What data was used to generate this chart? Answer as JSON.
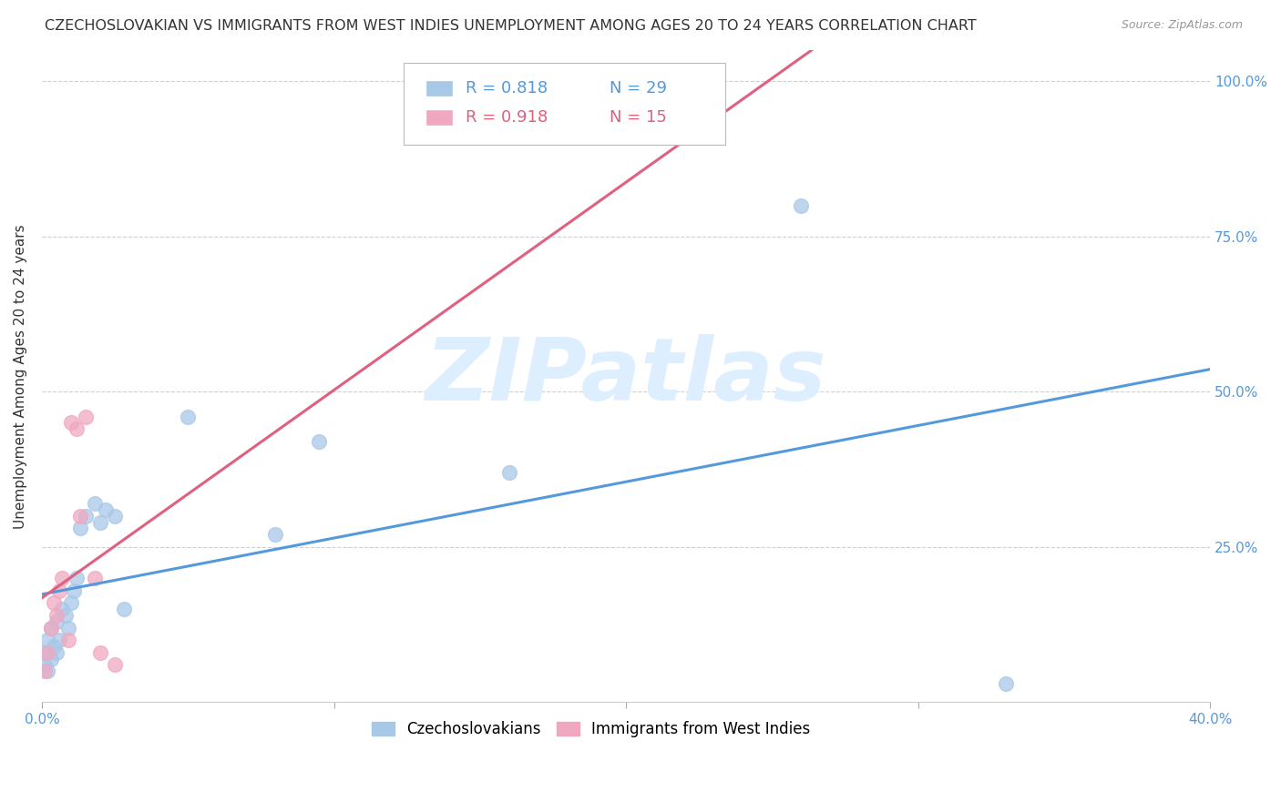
{
  "title": "CZECHOSLOVAKIAN VS IMMIGRANTS FROM WEST INDIES UNEMPLOYMENT AMONG AGES 20 TO 24 YEARS CORRELATION CHART",
  "source": "Source: ZipAtlas.com",
  "ylabel": "Unemployment Among Ages 20 to 24 years",
  "background_color": "#ffffff",
  "grid_color": "#d0d0d0",
  "czech_color": "#a8c8e8",
  "czech_line_color": "#5599dd",
  "czech_R": 0.818,
  "czech_N": 29,
  "wi_color": "#f0a8c0",
  "wi_line_color": "#e06080",
  "wi_R": 0.918,
  "wi_N": 15,
  "xlim": [
    0.0,
    0.4
  ],
  "ylim": [
    0.0,
    1.05
  ],
  "xticks": [
    0.0,
    0.1,
    0.2,
    0.3,
    0.4
  ],
  "xtick_labels": [
    "0.0%",
    "",
    "",
    "",
    "40.0%"
  ],
  "yticks": [
    0.25,
    0.5,
    0.75,
    1.0
  ],
  "ytick_labels": [
    "25.0%",
    "50.0%",
    "75.0%",
    "100.0%"
  ],
  "czech_x": [
    0.001,
    0.001,
    0.002,
    0.002,
    0.003,
    0.003,
    0.004,
    0.005,
    0.005,
    0.006,
    0.007,
    0.008,
    0.009,
    0.01,
    0.011,
    0.012,
    0.013,
    0.015,
    0.018,
    0.02,
    0.022,
    0.025,
    0.028,
    0.05,
    0.08,
    0.095,
    0.16,
    0.26,
    0.33
  ],
  "czech_y": [
    0.06,
    0.08,
    0.05,
    0.1,
    0.07,
    0.12,
    0.09,
    0.08,
    0.13,
    0.1,
    0.15,
    0.14,
    0.12,
    0.16,
    0.18,
    0.2,
    0.28,
    0.3,
    0.32,
    0.29,
    0.31,
    0.3,
    0.15,
    0.46,
    0.27,
    0.42,
    0.37,
    0.8,
    0.03
  ],
  "wi_x": [
    0.001,
    0.002,
    0.003,
    0.004,
    0.005,
    0.006,
    0.007,
    0.009,
    0.01,
    0.012,
    0.013,
    0.015,
    0.018,
    0.02,
    0.025
  ],
  "wi_y": [
    0.05,
    0.08,
    0.12,
    0.16,
    0.14,
    0.18,
    0.2,
    0.1,
    0.45,
    0.44,
    0.3,
    0.46,
    0.2,
    0.08,
    0.06
  ],
  "watermark_text": "ZIPatlas",
  "watermark_color": "#ddeeff",
  "title_fontsize": 11.5,
  "axis_label_fontsize": 11,
  "tick_fontsize": 11,
  "legend_fontsize": 13
}
